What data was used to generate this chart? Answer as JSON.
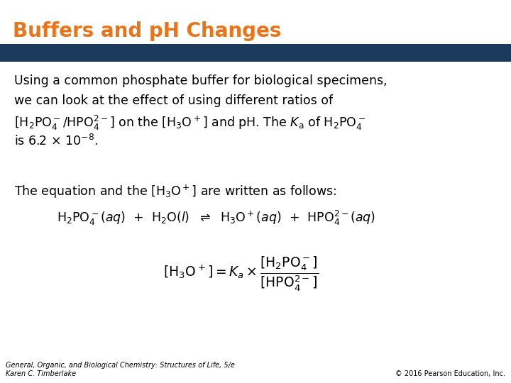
{
  "title_display": "Buffers and pH Changes",
  "title_color": "#E8751A",
  "banner_color": "#1B3A5C",
  "bg_color": "#FFFFFF",
  "footer_left": "General, Organic, and Biological Chemistry: Structures of Life, 5/e\nKaren C. Timberlake",
  "footer_right": "© 2016 Pearson Education, Inc.",
  "footer_fontsize": 7.0,
  "title_fontsize": 20,
  "body_fontsize": 12.5
}
